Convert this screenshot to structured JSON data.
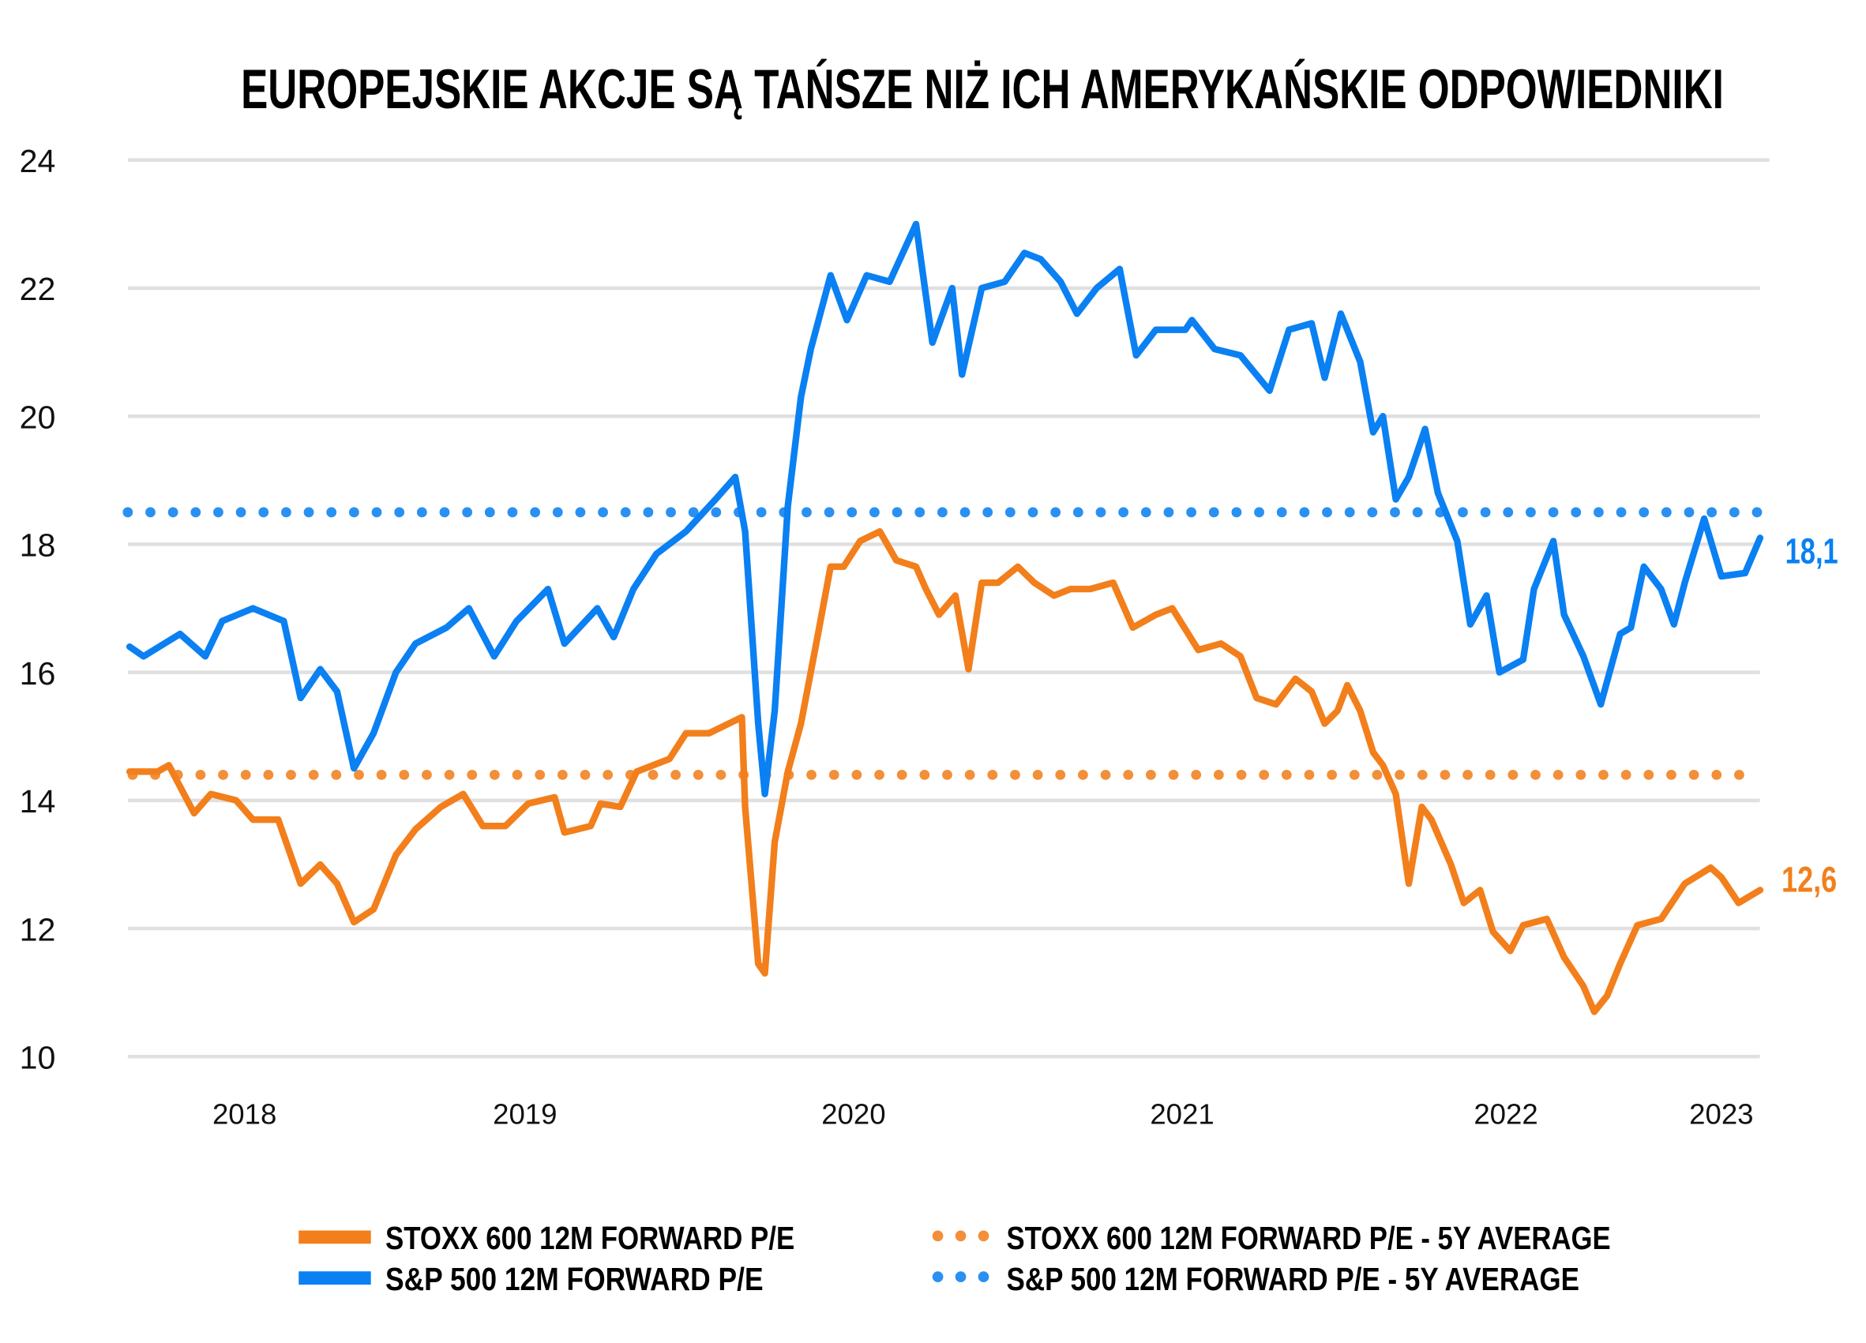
{
  "chart_data": {
    "type": "line",
    "title": "EUROPEJSKIE AKCJE SĄ TAŃSZE NIŻ ICH AMERYKAŃSKIE ODPOWIEDNIKI",
    "xlabel": "",
    "ylabel": "",
    "ylim": [
      10,
      24
    ],
    "yticks": [
      "24",
      "22",
      "20",
      "18",
      "16",
      "14",
      "12",
      "10"
    ],
    "xticks": [
      "2018",
      "2019",
      "2020",
      "2021",
      "2022",
      "2023"
    ],
    "grid": "horizontal",
    "legend_position": "bottom",
    "colors": {
      "stoxx": "#f27f1b",
      "sp500": "#0a80f2",
      "stoxx_avg": "#f28f38",
      "sp500_avg": "#2a90f2"
    },
    "series": [
      {
        "name": "STOXX 600 12M FORWARD P/E",
        "style": "solid",
        "end_label": "12,6",
        "x": [
          2018.09,
          2018.19,
          2018.23,
          2018.32,
          2018.38,
          2018.47,
          2018.53,
          2018.62,
          2018.7,
          2018.77,
          2018.83,
          2018.89,
          2018.96,
          2019.04,
          2019.11,
          2019.2,
          2019.28,
          2019.35,
          2019.43,
          2019.51,
          2019.59,
          2019.62,
          2019.7,
          2019.73,
          2019.79,
          2019.84,
          2019.94,
          2019.99,
          2020.06,
          2020.12,
          2020.16,
          2020.17,
          2020.21,
          2020.23,
          2020.26,
          2020.3,
          2020.34,
          2020.39,
          2020.43,
          2020.47,
          2020.52,
          2020.58,
          2020.63,
          2020.69,
          2020.72,
          2020.76,
          2020.81,
          2020.85,
          2020.89,
          2020.94,
          2021.0,
          2021.05,
          2021.11,
          2021.16,
          2021.22,
          2021.29,
          2021.35,
          2021.42,
          2021.47,
          2021.55,
          2021.62,
          2021.68,
          2021.73,
          2021.79,
          2021.85,
          2021.9,
          2021.94,
          2021.98,
          2022.01,
          2022.05,
          2022.09,
          2022.12,
          2022.16,
          2022.2,
          2022.24,
          2022.27,
          2022.33,
          2022.37,
          2022.42,
          2022.46,
          2022.52,
          2022.58,
          2022.69,
          2022.77,
          2022.86,
          2022.91,
          2022.97,
          2023.03,
          2023.11,
          2023.22,
          2023.33,
          2023.45,
          2023.5,
          2023.58,
          2023.68
        ],
        "values": [
          14.45,
          14.45,
          14.55,
          13.8,
          14.1,
          14.0,
          13.7,
          13.7,
          12.7,
          13.0,
          12.7,
          12.1,
          12.3,
          13.15,
          13.55,
          13.9,
          14.1,
          13.6,
          13.6,
          13.95,
          14.05,
          13.5,
          13.6,
          13.95,
          13.9,
          14.45,
          14.65,
          15.05,
          15.05,
          15.2,
          15.3,
          13.9,
          11.45,
          11.3,
          13.35,
          14.45,
          15.2,
          16.55,
          17.65,
          17.65,
          18.05,
          18.2,
          17.75,
          17.65,
          17.3,
          16.9,
          17.2,
          16.05,
          17.4,
          17.4,
          17.65,
          17.4,
          17.2,
          17.3,
          17.3,
          17.4,
          16.7,
          16.9,
          17.0,
          16.35,
          16.45,
          16.25,
          15.6,
          15.5,
          15.9,
          15.7,
          15.2,
          15.4,
          15.8,
          15.4,
          14.75,
          14.55,
          14.1,
          12.7,
          13.9,
          13.7,
          13.0,
          12.4,
          12.6,
          11.95,
          11.65,
          12.05,
          12.15,
          11.55,
          11.1,
          10.7,
          10.95,
          11.45,
          12.05,
          12.15,
          12.7,
          12.95,
          12.8,
          12.4,
          12.6
        ]
      },
      {
        "name": "S&P 500 12M FORWARD P/E",
        "style": "solid",
        "end_label": "18,1",
        "x": [
          2018.09,
          2018.14,
          2018.27,
          2018.36,
          2018.42,
          2018.53,
          2018.64,
          2018.7,
          2018.77,
          2018.83,
          2018.89,
          2018.96,
          2019.04,
          2019.11,
          2019.22,
          2019.3,
          2019.39,
          2019.47,
          2019.57,
          2019.62,
          2019.72,
          2019.77,
          2019.83,
          2019.9,
          2019.99,
          2020.08,
          2020.14,
          2020.17,
          2020.21,
          2020.23,
          2020.26,
          2020.3,
          2020.34,
          2020.37,
          2020.43,
          2020.48,
          2020.54,
          2020.61,
          2020.69,
          2020.74,
          2020.8,
          2020.83,
          2020.89,
          2020.96,
          2021.02,
          2021.07,
          2021.13,
          2021.18,
          2021.24,
          2021.31,
          2021.36,
          2021.42,
          2021.51,
          2021.53,
          2021.6,
          2021.68,
          2021.77,
          2021.83,
          2021.9,
          2021.94,
          2021.99,
          2022.05,
          2022.09,
          2022.12,
          2022.16,
          2022.2,
          2022.25,
          2022.29,
          2022.35,
          2022.39,
          2022.44,
          2022.48,
          2022.58,
          2022.63,
          2022.72,
          2022.77,
          2022.86,
          2022.94,
          2023.03,
          2023.08,
          2023.14,
          2023.22,
          2023.28,
          2023.33,
          2023.42,
          2023.5,
          2023.61,
          2023.68
        ],
        "values": [
          16.4,
          16.25,
          16.6,
          16.25,
          16.8,
          17.0,
          16.8,
          15.6,
          16.05,
          15.7,
          14.5,
          15.05,
          16.0,
          16.45,
          16.7,
          17.0,
          16.25,
          16.8,
          17.3,
          16.45,
          17.0,
          16.55,
          17.3,
          17.85,
          18.2,
          18.7,
          19.05,
          18.2,
          15.2,
          14.1,
          15.4,
          18.6,
          20.3,
          21.05,
          22.2,
          21.5,
          22.2,
          22.1,
          23.0,
          21.15,
          22.0,
          20.65,
          22.0,
          22.1,
          22.55,
          22.45,
          22.1,
          21.6,
          22.0,
          22.3,
          20.95,
          21.35,
          21.35,
          21.5,
          21.05,
          20.95,
          20.4,
          21.35,
          21.45,
          20.6,
          21.6,
          20.85,
          19.75,
          20.0,
          18.7,
          19.05,
          19.8,
          18.8,
          18.05,
          16.75,
          17.2,
          16.0,
          16.2,
          17.3,
          18.05,
          16.9,
          16.25,
          15.5,
          16.6,
          16.7,
          17.65,
          17.3,
          16.75,
          17.4,
          18.4,
          17.5,
          17.55,
          18.1
        ]
      },
      {
        "name": "STOXX 600 12M FORWARD P/E - 5Y AVERAGE",
        "style": "dotted",
        "value": 14.4
      },
      {
        "name": "S&P 500 12M FORWARD P/E - 5Y AVERAGE",
        "style": "dotted",
        "value": 18.5
      }
    ]
  }
}
